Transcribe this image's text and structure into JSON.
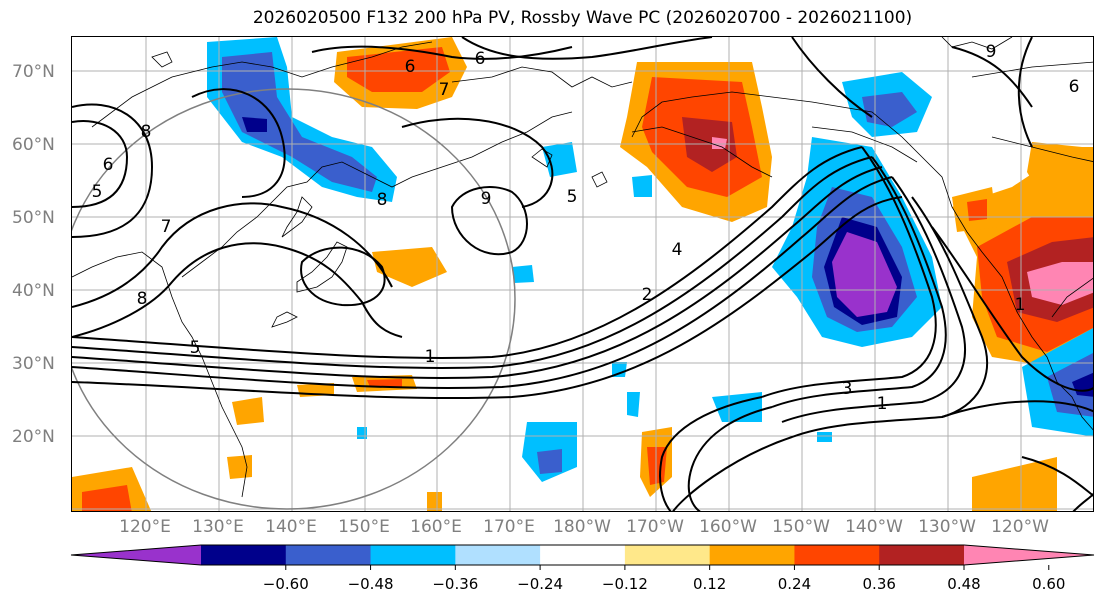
{
  "title": "2026020500 F132 200 hPa PV, Rossby Wave PC (2026020700 - 2026021100)",
  "map": {
    "lat_labels": [
      "70°N",
      "60°N",
      "50°N",
      "40°N",
      "30°N",
      "20°N"
    ],
    "lon_labels": [
      "120°E",
      "130°E",
      "140°E",
      "150°E",
      "160°E",
      "170°E",
      "180°W",
      "170°W",
      "160°W",
      "150°W",
      "140°W",
      "130°W",
      "120°W"
    ],
    "contour_labels": [
      "6",
      "6",
      "8",
      "6",
      "7",
      "8",
      "9",
      "8",
      "5",
      "1",
      "2",
      "4",
      "3",
      "1",
      "1",
      "6",
      "9",
      "7",
      "5",
      "5"
    ]
  },
  "colorbar": {
    "tick_labels": [
      "−0.60",
      "−0.48",
      "−0.36",
      "−0.24",
      "−0.12",
      "0.12",
      "0.24",
      "0.36",
      "0.48",
      "0.60"
    ],
    "levels": [
      -0.6,
      -0.48,
      -0.36,
      -0.24,
      -0.12,
      0.12,
      0.24,
      0.36,
      0.48,
      0.6
    ],
    "colors": [
      "#9932cc",
      "#00008b",
      "#3a5fcd",
      "#00bfff",
      "#b0e0ff",
      "#ffffff",
      "#ffe88a",
      "#ffa500",
      "#ff4500",
      "#b22222",
      "#ff85b3"
    ]
  }
}
